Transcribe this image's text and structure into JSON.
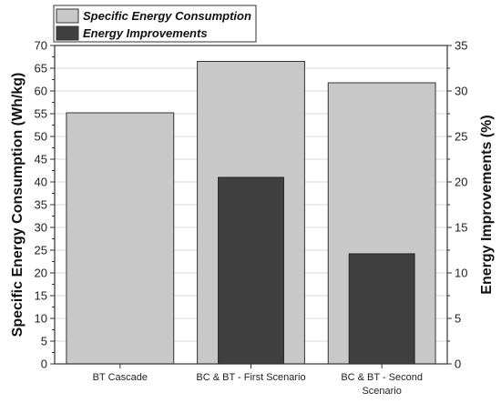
{
  "chart_data": {
    "type": "bar",
    "categories": [
      "BT Cascade",
      "BC & BT - First Scenario",
      "BC & BT - Second Scenario"
    ],
    "category_lines": [
      [
        "BT Cascade"
      ],
      [
        "BC & BT - First Scenario"
      ],
      [
        "BC & BT - Second",
        "Scenario"
      ]
    ],
    "series": [
      {
        "name": "Specific Energy Consumption",
        "axis": "left",
        "values": [
          55.2,
          66.5,
          61.8
        ],
        "color": "#c8c8c8"
      },
      {
        "name": "Energy Improvements",
        "axis": "right",
        "values": [
          null,
          20.5,
          12.1
        ],
        "color": "#404040"
      }
    ],
    "ylabel_left": "Specific Energy Consumption (Wh/kg)",
    "ylabel_right": "Energy Improvements (%)",
    "ylim_left": [
      0,
      70
    ],
    "ylim_right": [
      0,
      35
    ],
    "yticks_left": [
      0,
      5,
      10,
      15,
      20,
      25,
      30,
      35,
      40,
      45,
      50,
      55,
      60,
      65,
      70
    ],
    "yticks_right": [
      0,
      5,
      10,
      15,
      20,
      25,
      30,
      35
    ],
    "grid": true,
    "legend_position": "top-left"
  }
}
